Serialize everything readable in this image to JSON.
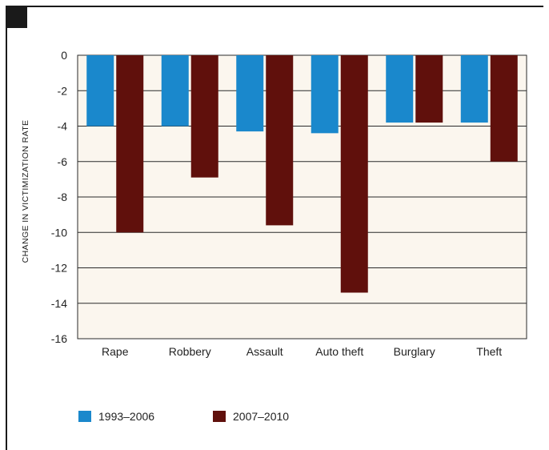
{
  "chart_data": {
    "type": "bar",
    "ylabel": "CHANGE IN VICTIMIZATION RATE",
    "xlabel": "",
    "categories": [
      "Rape",
      "Robbery",
      "Assault",
      "Auto theft",
      "Burglary",
      "Theft"
    ],
    "series": [
      {
        "name": "1993–2006",
        "color": "#1a88cc",
        "values": [
          -4.0,
          -4.0,
          -4.3,
          -4.4,
          -3.8,
          -3.8
        ]
      },
      {
        "name": "2007–2010",
        "color": "#60100c",
        "values": [
          -10.0,
          -6.9,
          -9.6,
          -13.4,
          -3.8,
          -6.0
        ]
      }
    ],
    "ylim": [
      -16,
      0
    ],
    "yticks": [
      0,
      -2,
      -4,
      -6,
      -8,
      -10,
      -12,
      -14,
      -16
    ],
    "grid": true,
    "plot_background": "#fbf6ee",
    "legend_position": "bottom-left"
  }
}
